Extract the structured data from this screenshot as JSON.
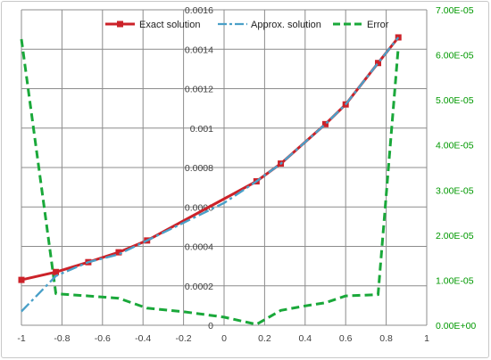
{
  "chart_data": {
    "type": "line",
    "legend_position": "top",
    "grid": true,
    "xlim": [
      -1,
      1
    ],
    "ylim": [
      0,
      0.0016
    ],
    "y2lim": [
      0,
      7e-05
    ],
    "x_ticks": [
      "-1",
      "-0.8",
      "-0.6",
      "-0.4",
      "-0.2",
      "0",
      "0.2",
      "0.4",
      "0.6",
      "0.8",
      "1"
    ],
    "y_ticks": [
      "0",
      "0.0002",
      "0.0004",
      "0.0006",
      "0.0008",
      "0.001",
      "0.0012",
      "0.0014",
      "0.0016"
    ],
    "y2_ticks": [
      "0.00E+00",
      "1.00E-05",
      "2.00E-05",
      "3.00E-05",
      "4.00E-05",
      "5.00E-05",
      "6.00E-05",
      "7.00E-05"
    ],
    "series": [
      {
        "name": "Exact solution",
        "color": "#cc2229",
        "axis": "left",
        "marker": "square",
        "x": [
          -1,
          -0.83,
          -0.67,
          -0.52,
          -0.38,
          0.16,
          0.28,
          0.5,
          0.6,
          0.76,
          0.86
        ],
        "y": [
          0.00023,
          0.00027,
          0.00032,
          0.00037,
          0.00043,
          0.00073,
          0.00082,
          0.00102,
          0.00112,
          0.00133,
          0.00146
        ]
      },
      {
        "name": "Approx. solution",
        "color": "#4aa0c8",
        "axis": "left",
        "dash": "dashdot",
        "x": [
          -1,
          -0.83,
          -0.67,
          -0.52,
          -0.38,
          -0.2,
          0,
          0.16,
          0.28,
          0.5,
          0.6,
          0.76,
          0.86
        ],
        "y": [
          7e-05,
          0.00025,
          0.00032,
          0.00036,
          0.00043,
          0.00052,
          0.00062,
          0.00073,
          0.00082,
          0.00102,
          0.00112,
          0.00133,
          0.00146
        ]
      },
      {
        "name": "Error",
        "color": "#1aa83a",
        "axis": "right",
        "dash": "dash",
        "x": [
          -1,
          -0.83,
          -0.67,
          -0.52,
          -0.38,
          -0.2,
          0,
          0.16,
          0.28,
          0.4,
          0.5,
          0.6,
          0.76,
          0.86
        ],
        "y": [
          6.35e-05,
          7e-06,
          6.5e-06,
          6e-06,
          3.8e-06,
          3e-06,
          1.8e-06,
          2e-07,
          3.3e-06,
          4.3e-06,
          5e-06,
          6.5e-06,
          6.8e-06,
          6.18e-05
        ]
      }
    ]
  }
}
